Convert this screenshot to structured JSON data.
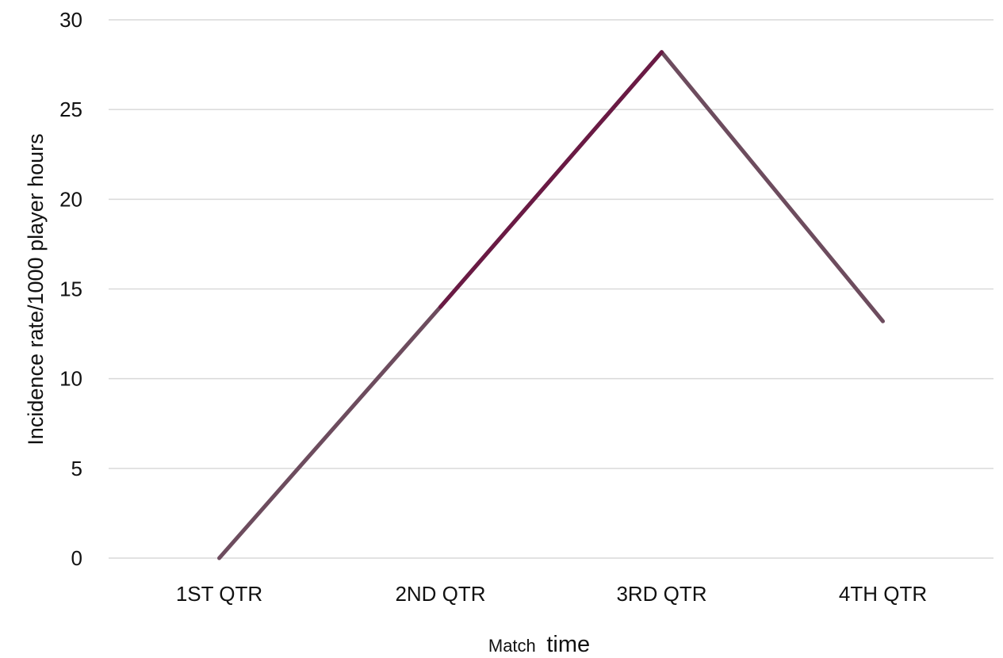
{
  "chart_data": {
    "type": "line",
    "title": "",
    "categories": [
      "1ST QTR",
      "2ND QTR",
      "3RD QTR",
      "4TH QTR"
    ],
    "series": [
      {
        "values": [
          0,
          14,
          28.2,
          13.2
        ],
        "color": "#6d4c5e",
        "highlight_color": "#6a1a44"
      }
    ],
    "xlabel_parts": [
      "Match",
      "time"
    ],
    "ylabel": "Incidence rate/1000 player hours",
    "ylim": [
      0,
      30
    ],
    "yticks": [
      "0",
      "5",
      "10",
      "15",
      "20",
      "25",
      "30"
    ],
    "grid": true,
    "gridline_color": "#d9d9d9"
  }
}
